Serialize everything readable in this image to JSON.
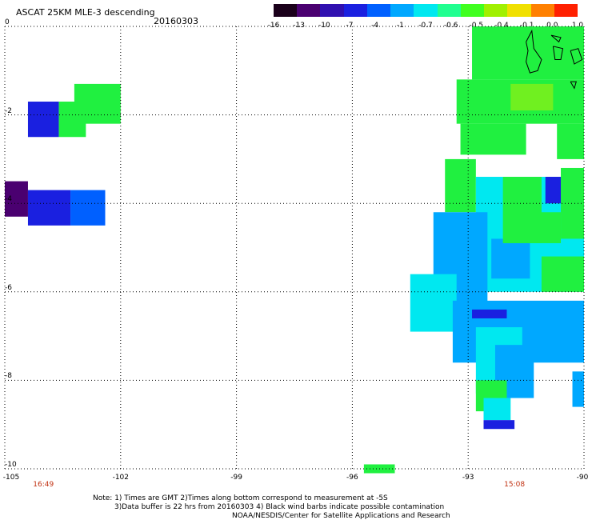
{
  "title": "ASCAT 25KM MLE-3 descending",
  "date": "20160303",
  "colorbar": {
    "labels": [
      "-16",
      "-13",
      "-10",
      "-7",
      "-4",
      "-1",
      "-0.7",
      "-0.6",
      "-0.5",
      "-0.4",
      "-0.1",
      "0.0",
      "1.0"
    ],
    "colors": [
      "#1a001a",
      "#4a0070",
      "#3010b0",
      "#1a20e0",
      "#0060ff",
      "#00a8ff",
      "#00e8f0",
      "#20ff90",
      "#40ff20",
      "#a0f000",
      "#f0e000",
      "#ff8000",
      "#ff2000"
    ]
  },
  "axes": {
    "x_ticks": [
      "-105",
      "-102",
      "-99",
      "-96",
      "-93",
      "-90"
    ],
    "y_ticks": [
      "0",
      "-2",
      "-4",
      "-6",
      "-8",
      "-10"
    ],
    "x_range": [
      -105,
      -90
    ],
    "y_range": [
      0,
      -10
    ]
  },
  "times": {
    "left": "16:49",
    "right": "15:08",
    "left_lon": -104.0,
    "right_lon": -91.8
  },
  "notes": {
    "line1": "Note: 1) Times are GMT 2)Times along bottom correspond to measurement at -5S",
    "line2": "3)Data buffer is 22 hrs from 20160303 4) Black wind barbs indicate possible contamination",
    "line3": "NOAA/NESDIS/Center for Satellite Applications and Research"
  },
  "map_data": {
    "cells": [
      {
        "lon0": -104.4,
        "lat0": -1.7,
        "lon1": -103.6,
        "lat1": -2.5,
        "c": "#1a20e0"
      },
      {
        "lon0": -103.6,
        "lat0": -1.7,
        "lon1": -102.9,
        "lat1": -2.5,
        "c": "#20f040"
      },
      {
        "lon0": -103.2,
        "lat0": -1.3,
        "lon1": -102.0,
        "lat1": -2.2,
        "c": "#20f040"
      },
      {
        "lon0": -105.0,
        "lat0": -3.5,
        "lon1": -104.4,
        "lat1": -4.3,
        "c": "#4a0070"
      },
      {
        "lon0": -104.4,
        "lat0": -3.7,
        "lon1": -103.3,
        "lat1": -4.5,
        "c": "#1a20e0"
      },
      {
        "lon0": -103.3,
        "lat0": -3.7,
        "lon1": -102.4,
        "lat1": -4.5,
        "c": "#0060ff"
      },
      {
        "lon0": -95.7,
        "lat0": -9.9,
        "lon1": -94.9,
        "lat1": -10.1,
        "c": "#20f040"
      },
      {
        "lon0": -92.9,
        "lat0": 0.0,
        "lon1": -90.0,
        "lat1": -1.2,
        "c": "#20f040"
      },
      {
        "lon0": -93.3,
        "lat0": -1.2,
        "lon1": -90.0,
        "lat1": -2.2,
        "c": "#20f040"
      },
      {
        "lon0": -91.9,
        "lat0": -1.3,
        "lon1": -90.8,
        "lat1": -1.9,
        "c": "#70f020"
      },
      {
        "lon0": -93.2,
        "lat0": -2.2,
        "lon1": -91.5,
        "lat1": -2.9,
        "c": "#20f040"
      },
      {
        "lon0": -90.7,
        "lat0": -2.2,
        "lon1": -90.0,
        "lat1": -3.0,
        "c": "#20f040"
      },
      {
        "lon0": -93.6,
        "lat0": -3.0,
        "lon1": -92.8,
        "lat1": -4.2,
        "c": "#20f040"
      },
      {
        "lon0": -92.8,
        "lat0": -3.4,
        "lon1": -90.0,
        "lat1": -6.0,
        "c": "#00e8f0"
      },
      {
        "lon0": -93.9,
        "lat0": -4.2,
        "lon1": -92.5,
        "lat1": -6.5,
        "c": "#00a8ff"
      },
      {
        "lon0": -94.5,
        "lat0": -5.6,
        "lon1": -93.3,
        "lat1": -6.9,
        "c": "#00e8f0"
      },
      {
        "lon0": -93.4,
        "lat0": -6.2,
        "lon1": -90.0,
        "lat1": -7.6,
        "c": "#00a8ff"
      },
      {
        "lon0": -91.0,
        "lat0": -3.4,
        "lon1": -90.3,
        "lat1": -4.0,
        "c": "#1a20e0"
      },
      {
        "lon0": -90.6,
        "lat0": -3.2,
        "lon1": -90.0,
        "lat1": -4.8,
        "c": "#20f040"
      },
      {
        "lon0": -91.6,
        "lat0": -4.2,
        "lon1": -90.6,
        "lat1": -4.9,
        "c": "#20f040"
      },
      {
        "lon0": -92.4,
        "lat0": -4.8,
        "lon1": -91.4,
        "lat1": -5.7,
        "c": "#00a8ff"
      },
      {
        "lon0": -92.8,
        "lat0": -6.8,
        "lon1": -91.6,
        "lat1": -8.3,
        "c": "#00e8f0"
      },
      {
        "lon0": -92.3,
        "lat0": -7.2,
        "lon1": -91.3,
        "lat1": -8.4,
        "c": "#00a8ff"
      },
      {
        "lon0": -90.3,
        "lat0": -7.8,
        "lon1": -90.0,
        "lat1": -8.6,
        "c": "#00a8ff"
      },
      {
        "lon0": -92.8,
        "lat0": -8.0,
        "lon1": -92.0,
        "lat1": -8.7,
        "c": "#20f040"
      },
      {
        "lon0": -92.6,
        "lat0": -8.4,
        "lon1": -91.9,
        "lat1": -8.9,
        "c": "#00e8f0"
      },
      {
        "lon0": -92.6,
        "lat0": -8.9,
        "lon1": -91.8,
        "lat1": -9.1,
        "c": "#1a20e0"
      },
      {
        "lon0": -92.1,
        "lat0": -3.4,
        "lon1": -91.1,
        "lat1": -4.9,
        "c": "#20f040"
      },
      {
        "lon0": -91.1,
        "lat0": -5.2,
        "lon1": -90.0,
        "lat1": -6.0,
        "c": "#20f040"
      },
      {
        "lon0": -92.9,
        "lat0": -6.4,
        "lon1": -92.0,
        "lat1": -6.6,
        "c": "#1a20e0"
      }
    ],
    "islands": [
      [
        [
          -91.5,
          -0.35
        ],
        [
          -91.35,
          -0.1
        ],
        [
          -91.3,
          -0.5
        ],
        [
          -91.1,
          -0.75
        ],
        [
          -91.2,
          -1.0
        ],
        [
          -91.4,
          -1.05
        ],
        [
          -91.5,
          -0.8
        ],
        [
          -91.45,
          -0.55
        ],
        [
          -91.5,
          -0.35
        ]
      ],
      [
        [
          -90.8,
          -0.45
        ],
        [
          -90.55,
          -0.5
        ],
        [
          -90.6,
          -0.75
        ],
        [
          -90.75,
          -0.75
        ],
        [
          -90.8,
          -0.45
        ]
      ],
      [
        [
          -90.35,
          -0.55
        ],
        [
          -90.15,
          -0.5
        ],
        [
          -90.05,
          -0.75
        ],
        [
          -90.25,
          -0.85
        ],
        [
          -90.35,
          -0.55
        ]
      ],
      [
        [
          -90.85,
          -0.2
        ],
        [
          -90.6,
          -0.25
        ],
        [
          -90.65,
          -0.35
        ],
        [
          -90.85,
          -0.2
        ]
      ],
      [
        [
          -90.35,
          -1.25
        ],
        [
          -90.2,
          -1.25
        ],
        [
          -90.25,
          -1.4
        ],
        [
          -90.35,
          -1.25
        ]
      ]
    ]
  }
}
